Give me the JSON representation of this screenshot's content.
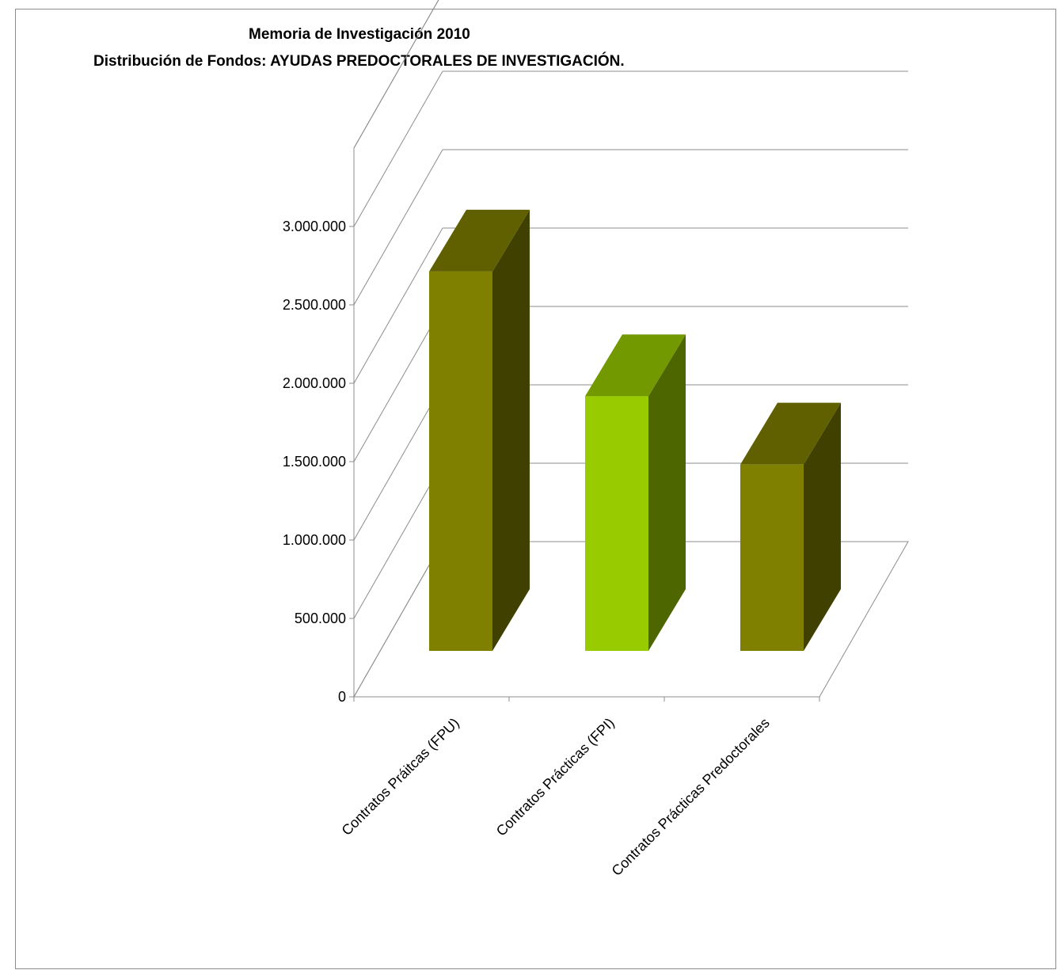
{
  "chart_data": {
    "type": "bar",
    "title": "Memoria de Investigación 2010",
    "subtitle": "Distribución de Fondos: AYUDAS PREDOCTORALES DE INVESTIGACIÓN.",
    "categories": [
      "Contratos Práitcas (FPU)",
      "Contratos Prácticas (FPI)",
      "Contratos Prácticas Predoctorales"
    ],
    "values": [
      2830000,
      1900000,
      1390000
    ],
    "ylim": [
      0,
      3000000
    ],
    "yticks": [
      0,
      500000,
      1000000,
      1500000,
      2000000,
      2500000,
      3000000
    ],
    "ytick_labels": [
      "0",
      "500.000",
      "1.000.000",
      "1.500.000",
      "2.000.000",
      "2.500.000",
      "3.000.000"
    ],
    "xlabel": "",
    "ylabel": "",
    "grid": true,
    "three_d": true,
    "colors": [
      {
        "front": "#808000",
        "side": "#404000",
        "top": "#606000"
      },
      {
        "front": "#99cc00",
        "side": "#4d6600",
        "top": "#739900"
      },
      {
        "front": "#808000",
        "side": "#404000",
        "top": "#606000"
      }
    ],
    "axis_color": "#8c8c8c"
  }
}
